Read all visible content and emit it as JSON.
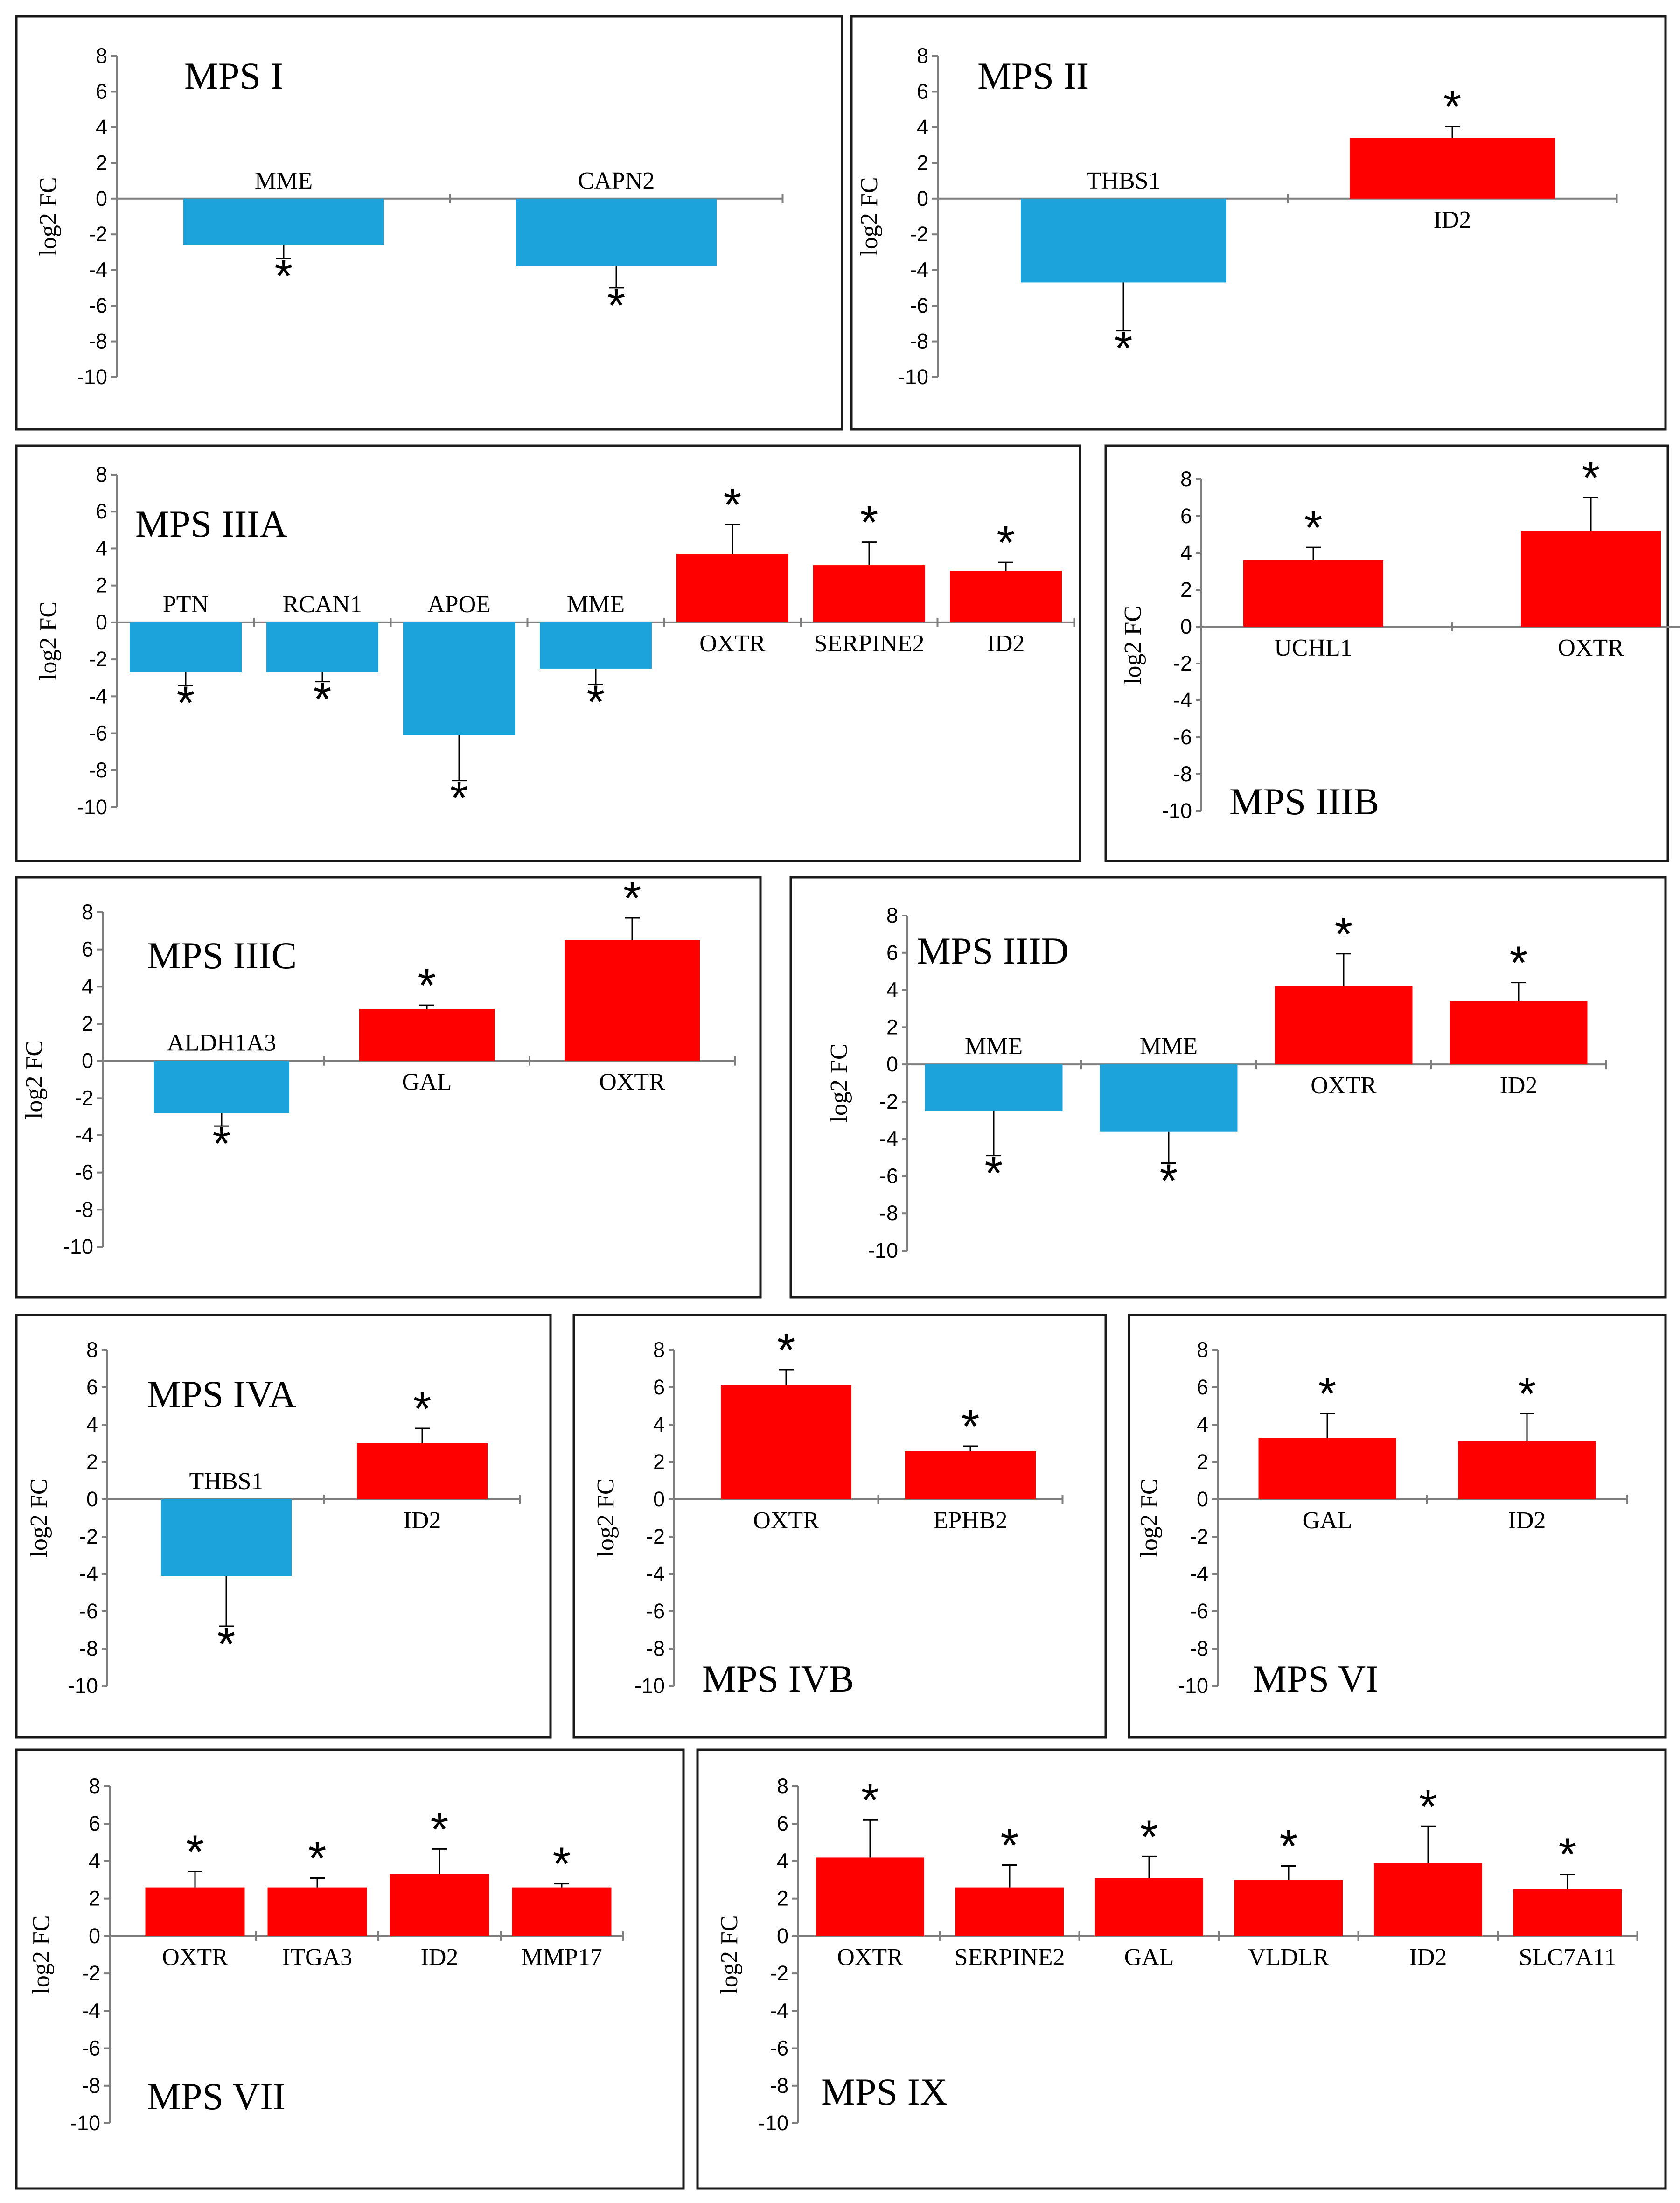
{
  "colors": {
    "down": "#1ca3dc",
    "up": "#ff0000"
  },
  "chart_data": [
    {
      "type": "bar",
      "title": "MPS I",
      "ylabel": "log2 FC",
      "ylim": [
        -10,
        8
      ],
      "ticks": [
        8,
        6,
        4,
        2,
        0,
        -2,
        -4,
        -6,
        -8,
        -10
      ],
      "significance_marker": "*",
      "bars": [
        {
          "gene": "MME",
          "value": -2.6,
          "error": 0.75,
          "direction": "down",
          "significant": true
        },
        {
          "gene": "CAPN2",
          "value": -3.8,
          "error": 1.2,
          "direction": "down",
          "significant": true
        }
      ]
    },
    {
      "type": "bar",
      "title": "MPS II",
      "ylabel": "log2 FC",
      "ylim": [
        -10,
        8
      ],
      "ticks": [
        8,
        6,
        4,
        2,
        0,
        -2,
        -4,
        -6,
        -8,
        -10
      ],
      "significance_marker": "*",
      "bars": [
        {
          "gene": "THBS1",
          "value": -4.7,
          "error": 2.7,
          "direction": "down",
          "significant": true
        },
        {
          "gene": "ID2",
          "value": 3.4,
          "error": 0.65,
          "direction": "up",
          "significant": true
        }
      ]
    },
    {
      "type": "bar",
      "title": "MPS IIIA",
      "ylabel": "log2 FC",
      "ylim": [
        -10,
        8
      ],
      "ticks": [
        8,
        6,
        4,
        2,
        0,
        -2,
        -4,
        -6,
        -8,
        -10
      ],
      "significance_marker": "*",
      "bars": [
        {
          "gene": "PTN",
          "value": -2.7,
          "error": 0.7,
          "direction": "down",
          "significant": true
        },
        {
          "gene": "RCAN1",
          "value": -2.7,
          "error": 0.5,
          "direction": "down",
          "significant": true
        },
        {
          "gene": "APOE",
          "value": -6.1,
          "error": 2.45,
          "direction": "down",
          "significant": true
        },
        {
          "gene": "MME",
          "value": -2.5,
          "error": 0.85,
          "direction": "down",
          "significant": true
        },
        {
          "gene": "OXTR",
          "value": 3.7,
          "error": 1.6,
          "direction": "up",
          "significant": true
        },
        {
          "gene": "SERPINE2",
          "value": 3.1,
          "error": 1.25,
          "direction": "up",
          "significant": true
        },
        {
          "gene": "ID2",
          "value": 2.8,
          "error": 0.45,
          "direction": "up",
          "significant": true
        }
      ]
    },
    {
      "type": "bar",
      "title": "MPS IIIB",
      "ylabel": "log2 FC",
      "ylim": [
        -10,
        8
      ],
      "ticks": [
        8,
        6,
        4,
        2,
        0,
        -2,
        -4,
        -6,
        -8,
        -10
      ],
      "significance_marker": "*",
      "bars": [
        {
          "gene": "UCHL1",
          "value": 3.6,
          "error": 0.7,
          "direction": "up",
          "significant": true
        },
        {
          "gene": "OXTR",
          "value": 5.2,
          "error": 1.8,
          "direction": "up",
          "significant": true
        }
      ]
    },
    {
      "type": "bar",
      "title": "MPS IIIC",
      "ylabel": "log2 FC",
      "ylim": [
        -10,
        8
      ],
      "ticks": [
        8,
        6,
        4,
        2,
        0,
        -2,
        -4,
        -6,
        -8,
        -10
      ],
      "significance_marker": "*",
      "bars": [
        {
          "gene": "ALDH1A3",
          "value": -2.8,
          "error": 0.7,
          "direction": "down",
          "significant": true
        },
        {
          "gene": "GAL",
          "value": 2.8,
          "error": 0.2,
          "direction": "up",
          "significant": true
        },
        {
          "gene": "OXTR",
          "value": 6.5,
          "error": 1.2,
          "direction": "up",
          "significant": true
        }
      ]
    },
    {
      "type": "bar",
      "title": "MPS IIID",
      "ylabel": "log2 FC",
      "ylim": [
        -10,
        8
      ],
      "ticks": [
        8,
        6,
        4,
        2,
        0,
        -2,
        -4,
        -6,
        -8,
        -10
      ],
      "significance_marker": "*",
      "bars": [
        {
          "gene": "MME",
          "value": -2.5,
          "error": 2.4,
          "direction": "down",
          "significant": true
        },
        {
          "gene": "MME",
          "value": -3.6,
          "error": 1.7,
          "direction": "down",
          "significant": true
        },
        {
          "gene": "OXTR",
          "value": 4.2,
          "error": 1.75,
          "direction": "up",
          "significant": true
        },
        {
          "gene": "ID2",
          "value": 3.4,
          "error": 1.0,
          "direction": "up",
          "significant": true
        }
      ]
    },
    {
      "type": "bar",
      "title": "MPS IVA",
      "ylabel": "log2 FC",
      "ylim": [
        -10,
        8
      ],
      "ticks": [
        8,
        6,
        4,
        2,
        0,
        -2,
        -4,
        -6,
        -8,
        -10
      ],
      "significance_marker": "*",
      "bars": [
        {
          "gene": "THBS1",
          "value": -4.1,
          "error": 2.7,
          "direction": "down",
          "significant": true
        },
        {
          "gene": "ID2",
          "value": 3.0,
          "error": 0.8,
          "direction": "up",
          "significant": true
        }
      ]
    },
    {
      "type": "bar",
      "title": "MPS IVB",
      "ylabel": "log2 FC",
      "ylim": [
        -10,
        8
      ],
      "ticks": [
        8,
        6,
        4,
        2,
        0,
        -2,
        -4,
        -6,
        -8,
        -10
      ],
      "significance_marker": "*",
      "bars": [
        {
          "gene": "OXTR",
          "value": 6.1,
          "error": 0.85,
          "direction": "up",
          "significant": true
        },
        {
          "gene": "EPHB2",
          "value": 2.6,
          "error": 0.25,
          "direction": "up",
          "significant": true
        }
      ]
    },
    {
      "type": "bar",
      "title": "MPS VI",
      "ylabel": "log2 FC",
      "ylim": [
        -10,
        8
      ],
      "ticks": [
        8,
        6,
        4,
        2,
        0,
        -2,
        -4,
        -6,
        -8,
        -10
      ],
      "significance_marker": "*",
      "bars": [
        {
          "gene": "GAL",
          "value": 3.3,
          "error": 1.3,
          "direction": "up",
          "significant": true
        },
        {
          "gene": "ID2",
          "value": 3.1,
          "error": 1.5,
          "direction": "up",
          "significant": true
        }
      ]
    },
    {
      "type": "bar",
      "title": "MPS VII",
      "ylabel": "log2 FC",
      "ylim": [
        -10,
        8
      ],
      "ticks": [
        8,
        6,
        4,
        2,
        0,
        -2,
        -4,
        -6,
        -8,
        -10
      ],
      "significance_marker": "*",
      "bars": [
        {
          "gene": "OXTR",
          "value": 2.6,
          "error": 0.85,
          "direction": "up",
          "significant": true
        },
        {
          "gene": "ITGA3",
          "value": 2.6,
          "error": 0.5,
          "direction": "up",
          "significant": true
        },
        {
          "gene": "ID2",
          "value": 3.3,
          "error": 1.35,
          "direction": "up",
          "significant": true
        },
        {
          "gene": "MMP17",
          "value": 2.6,
          "error": 0.2,
          "direction": "up",
          "significant": true
        }
      ]
    },
    {
      "type": "bar",
      "title": "MPS IX",
      "ylabel": "log2 FC",
      "ylim": [
        -10,
        8
      ],
      "ticks": [
        8,
        6,
        4,
        2,
        0,
        -2,
        -4,
        -6,
        -8,
        -10
      ],
      "significance_marker": "*",
      "bars": [
        {
          "gene": "OXTR",
          "value": 4.2,
          "error": 2.0,
          "direction": "up",
          "significant": true
        },
        {
          "gene": "SERPINE2",
          "value": 2.6,
          "error": 1.2,
          "direction": "up",
          "significant": true
        },
        {
          "gene": "GAL",
          "value": 3.1,
          "error": 1.15,
          "direction": "up",
          "significant": true
        },
        {
          "gene": "VLDLR",
          "value": 3.0,
          "error": 0.75,
          "direction": "up",
          "significant": true
        },
        {
          "gene": "ID2",
          "value": 3.9,
          "error": 1.95,
          "direction": "up",
          "significant": true
        },
        {
          "gene": "SLC7A11",
          "value": 2.5,
          "error": 0.8,
          "direction": "up",
          "significant": true
        }
      ]
    }
  ]
}
